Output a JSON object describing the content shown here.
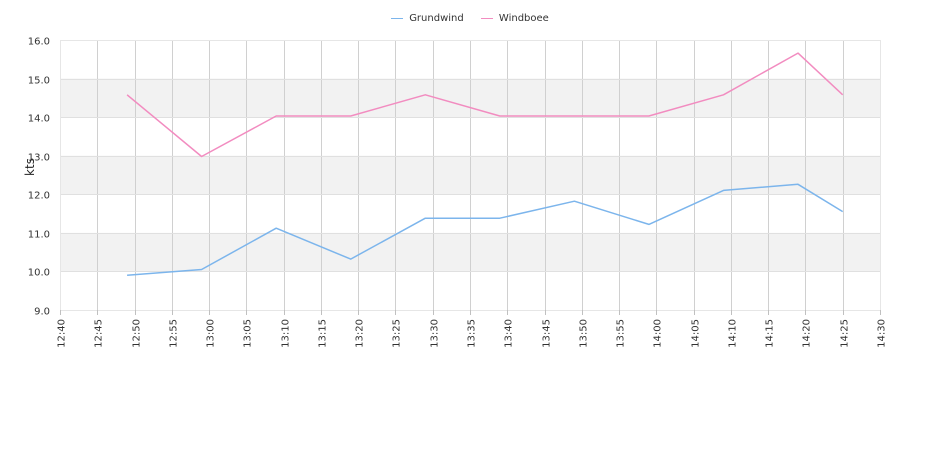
{
  "chart_data": {
    "type": "line",
    "ylabel": "kts",
    "ylim": [
      9.0,
      16.0
    ],
    "y_ticks": [
      "9.0",
      "10.0",
      "11.0",
      "12.0",
      "13.0",
      "14.0",
      "15.0",
      "16.0"
    ],
    "x_ticks": [
      "12:40",
      "12:45",
      "12:50",
      "12:55",
      "13:00",
      "13:05",
      "13:10",
      "13:15",
      "13:20",
      "13:25",
      "13:30",
      "13:35",
      "13:40",
      "13:45",
      "13:50",
      "13:55",
      "14:00",
      "14:05",
      "14:10",
      "14:15",
      "14:20",
      "14:25",
      "14:30"
    ],
    "xlim": [
      "12:40",
      "14:30"
    ],
    "grid": true,
    "legend_position": "top-center",
    "series": [
      {
        "name": "Grundwind",
        "color": "#7cb5ec",
        "x": [
          "12:49",
          "12:59",
          "13:09",
          "13:19",
          "13:29",
          "13:39",
          "13:49",
          "13:59",
          "14:09",
          "14:19",
          "14:25"
        ],
        "values": [
          9.9,
          10.05,
          11.12,
          10.32,
          11.38,
          11.38,
          11.82,
          11.22,
          12.1,
          12.26,
          11.55
        ]
      },
      {
        "name": "Windboee",
        "color": "#f28cc0",
        "x": [
          "12:49",
          "12:59",
          "13:09",
          "13:19",
          "13:29",
          "13:39",
          "13:49",
          "13:59",
          "14:09",
          "14:19",
          "14:25"
        ],
        "values": [
          14.58,
          12.98,
          14.03,
          14.03,
          14.58,
          14.03,
          14.03,
          14.03,
          14.58,
          15.66,
          14.58
        ]
      }
    ]
  }
}
